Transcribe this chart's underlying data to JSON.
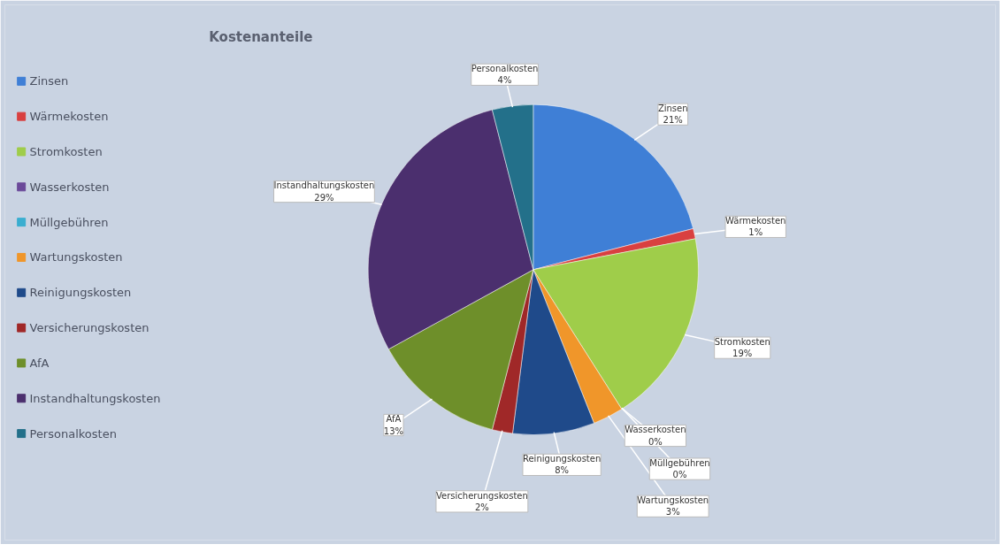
{
  "chart_data": {
    "type": "pie",
    "title": "Kostenanteile",
    "categories": [
      "Zinsen",
      "Wärmekosten",
      "Stromkosten",
      "Wasserkosten",
      "Müllgebühren",
      "Wartungskosten",
      "Reinigungskosten",
      "Versicherungskosten",
      "AfA",
      "Instandhaltungskosten",
      "Personalkosten"
    ],
    "values": [
      21,
      1,
      19,
      0,
      0,
      3,
      8,
      2,
      13,
      29,
      4
    ],
    "colors": [
      "#3f7fd6",
      "#d94040",
      "#9fcd4a",
      "#6b4a9a",
      "#3aaed0",
      "#f0962a",
      "#1f4a8a",
      "#a02828",
      "#6e8f2a",
      "#4b2f6e",
      "#23708a"
    ],
    "value_labels": [
      "21%",
      "1%",
      "19%",
      "0%",
      "0%",
      "3%",
      "8%",
      "2%",
      "13%",
      "29%",
      "4%"
    ],
    "legend": "left"
  }
}
